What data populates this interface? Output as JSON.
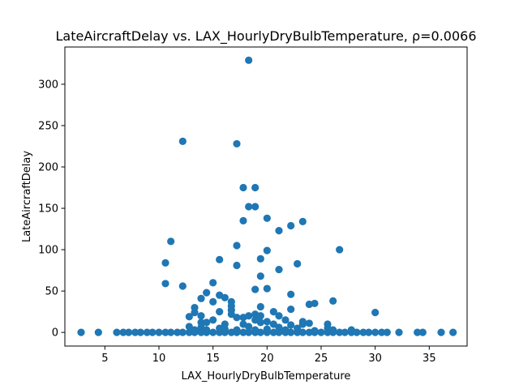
{
  "chart_data": {
    "type": "scatter",
    "title": "LateAircraftDelay vs. LAX_HourlyDryBulbTemperature, ρ=0.0066",
    "xlabel": "LAX_HourlyDryBulbTemperature",
    "ylabel": "LateAircraftDelay",
    "xlim": [
      1.3,
      38.5
    ],
    "ylim": [
      -16.5,
      345
    ],
    "x_ticks": [
      5,
      10,
      15,
      20,
      25,
      30,
      35
    ],
    "x_tick_labels": [
      "5",
      "10",
      "15",
      "20",
      "25",
      "30",
      "35"
    ],
    "y_ticks": [
      0,
      50,
      100,
      150,
      200,
      250,
      300
    ],
    "y_tick_labels": [
      "0",
      "50",
      "100",
      "150",
      "200",
      "250",
      "300"
    ],
    "grid": false,
    "marker_color": "#1f77b4",
    "points": [
      {
        "x": 2.8,
        "y": 0
      },
      {
        "x": 4.4,
        "y": 0
      },
      {
        "x": 6.1,
        "y": 0
      },
      {
        "x": 6.7,
        "y": 0
      },
      {
        "x": 7.2,
        "y": 0
      },
      {
        "x": 7.8,
        "y": 0
      },
      {
        "x": 8.3,
        "y": 0
      },
      {
        "x": 8.9,
        "y": 0
      },
      {
        "x": 9.4,
        "y": 0
      },
      {
        "x": 10.0,
        "y": 0
      },
      {
        "x": 10.6,
        "y": 0
      },
      {
        "x": 11.1,
        "y": 0
      },
      {
        "x": 11.7,
        "y": 0
      },
      {
        "x": 12.2,
        "y": 0
      },
      {
        "x": 12.8,
        "y": 0
      },
      {
        "x": 13.3,
        "y": 0
      },
      {
        "x": 13.9,
        "y": 0
      },
      {
        "x": 14.4,
        "y": 0
      },
      {
        "x": 15.0,
        "y": 0
      },
      {
        "x": 15.6,
        "y": 0
      },
      {
        "x": 16.1,
        "y": 0
      },
      {
        "x": 16.7,
        "y": 0
      },
      {
        "x": 17.2,
        "y": 0
      },
      {
        "x": 17.8,
        "y": 0
      },
      {
        "x": 18.3,
        "y": 0
      },
      {
        "x": 18.9,
        "y": 0
      },
      {
        "x": 19.4,
        "y": 0
      },
      {
        "x": 20.0,
        "y": 0
      },
      {
        "x": 20.6,
        "y": 0
      },
      {
        "x": 21.1,
        "y": 0
      },
      {
        "x": 21.7,
        "y": 0
      },
      {
        "x": 22.2,
        "y": 0
      },
      {
        "x": 22.8,
        "y": 0
      },
      {
        "x": 23.3,
        "y": 0
      },
      {
        "x": 23.9,
        "y": 0
      },
      {
        "x": 24.4,
        "y": 0
      },
      {
        "x": 25.0,
        "y": 0
      },
      {
        "x": 25.6,
        "y": 0
      },
      {
        "x": 26.1,
        "y": 0
      },
      {
        "x": 26.7,
        "y": 0
      },
      {
        "x": 27.2,
        "y": 0
      },
      {
        "x": 27.8,
        "y": 0
      },
      {
        "x": 28.3,
        "y": 0
      },
      {
        "x": 28.9,
        "y": 0
      },
      {
        "x": 29.4,
        "y": 0
      },
      {
        "x": 30.0,
        "y": 0
      },
      {
        "x": 30.6,
        "y": 0
      },
      {
        "x": 31.1,
        "y": 0
      },
      {
        "x": 32.2,
        "y": 0
      },
      {
        "x": 33.9,
        "y": 0
      },
      {
        "x": 34.4,
        "y": 0
      },
      {
        "x": 36.1,
        "y": 0
      },
      {
        "x": 37.2,
        "y": 0
      },
      {
        "x": 12.2,
        "y": 231
      },
      {
        "x": 17.2,
        "y": 228
      },
      {
        "x": 18.3,
        "y": 329
      },
      {
        "x": 17.8,
        "y": 175
      },
      {
        "x": 18.9,
        "y": 175
      },
      {
        "x": 18.3,
        "y": 152
      },
      {
        "x": 18.9,
        "y": 152
      },
      {
        "x": 17.8,
        "y": 135
      },
      {
        "x": 20.0,
        "y": 138
      },
      {
        "x": 22.2,
        "y": 129
      },
      {
        "x": 23.3,
        "y": 134
      },
      {
        "x": 21.1,
        "y": 123
      },
      {
        "x": 11.1,
        "y": 110
      },
      {
        "x": 17.2,
        "y": 105
      },
      {
        "x": 20.0,
        "y": 99
      },
      {
        "x": 26.7,
        "y": 100
      },
      {
        "x": 10.6,
        "y": 84
      },
      {
        "x": 15.6,
        "y": 88
      },
      {
        "x": 17.2,
        "y": 81
      },
      {
        "x": 19.4,
        "y": 89
      },
      {
        "x": 22.8,
        "y": 83
      },
      {
        "x": 21.1,
        "y": 76
      },
      {
        "x": 19.4,
        "y": 68
      },
      {
        "x": 10.6,
        "y": 59
      },
      {
        "x": 12.2,
        "y": 56
      },
      {
        "x": 15.0,
        "y": 60
      },
      {
        "x": 18.9,
        "y": 52
      },
      {
        "x": 20.0,
        "y": 53
      },
      {
        "x": 14.4,
        "y": 48
      },
      {
        "x": 15.6,
        "y": 45
      },
      {
        "x": 16.1,
        "y": 42
      },
      {
        "x": 13.9,
        "y": 41
      },
      {
        "x": 22.2,
        "y": 46
      },
      {
        "x": 15.0,
        "y": 37
      },
      {
        "x": 16.7,
        "y": 37
      },
      {
        "x": 24.4,
        "y": 35
      },
      {
        "x": 23.9,
        "y": 34
      },
      {
        "x": 26.1,
        "y": 38
      },
      {
        "x": 13.3,
        "y": 30
      },
      {
        "x": 16.7,
        "y": 32
      },
      {
        "x": 19.4,
        "y": 31
      },
      {
        "x": 22.2,
        "y": 28
      },
      {
        "x": 13.3,
        "y": 24
      },
      {
        "x": 15.6,
        "y": 25
      },
      {
        "x": 16.7,
        "y": 27
      },
      {
        "x": 20.6,
        "y": 25
      },
      {
        "x": 30.0,
        "y": 24
      },
      {
        "x": 12.8,
        "y": 19
      },
      {
        "x": 13.9,
        "y": 20
      },
      {
        "x": 16.7,
        "y": 22
      },
      {
        "x": 17.2,
        "y": 18
      },
      {
        "x": 17.8,
        "y": 18
      },
      {
        "x": 18.3,
        "y": 20
      },
      {
        "x": 18.9,
        "y": 22
      },
      {
        "x": 19.4,
        "y": 20
      },
      {
        "x": 21.1,
        "y": 20
      },
      {
        "x": 18.9,
        "y": 15
      },
      {
        "x": 20.0,
        "y": 13
      },
      {
        "x": 21.7,
        "y": 15
      },
      {
        "x": 23.3,
        "y": 13
      },
      {
        "x": 13.9,
        "y": 12
      },
      {
        "x": 14.4,
        "y": 12
      },
      {
        "x": 15.0,
        "y": 15
      },
      {
        "x": 16.1,
        "y": 10
      },
      {
        "x": 17.8,
        "y": 10
      },
      {
        "x": 19.4,
        "y": 12
      },
      {
        "x": 20.6,
        "y": 10
      },
      {
        "x": 22.2,
        "y": 9
      },
      {
        "x": 23.3,
        "y": 10
      },
      {
        "x": 23.9,
        "y": 11
      },
      {
        "x": 25.6,
        "y": 10
      },
      {
        "x": 12.8,
        "y": 7
      },
      {
        "x": 13.9,
        "y": 6
      },
      {
        "x": 15.6,
        "y": 5
      },
      {
        "x": 18.3,
        "y": 7
      },
      {
        "x": 21.1,
        "y": 6
      },
      {
        "x": 22.8,
        "y": 5
      },
      {
        "x": 25.6,
        "y": 5
      },
      {
        "x": 13.3,
        "y": 3
      },
      {
        "x": 14.4,
        "y": 3
      },
      {
        "x": 16.1,
        "y": 4
      },
      {
        "x": 17.2,
        "y": 3
      },
      {
        "x": 18.9,
        "y": 3
      },
      {
        "x": 20.0,
        "y": 4
      },
      {
        "x": 21.7,
        "y": 3
      },
      {
        "x": 24.4,
        "y": 2
      },
      {
        "x": 26.1,
        "y": 3
      },
      {
        "x": 27.8,
        "y": 3
      }
    ]
  }
}
